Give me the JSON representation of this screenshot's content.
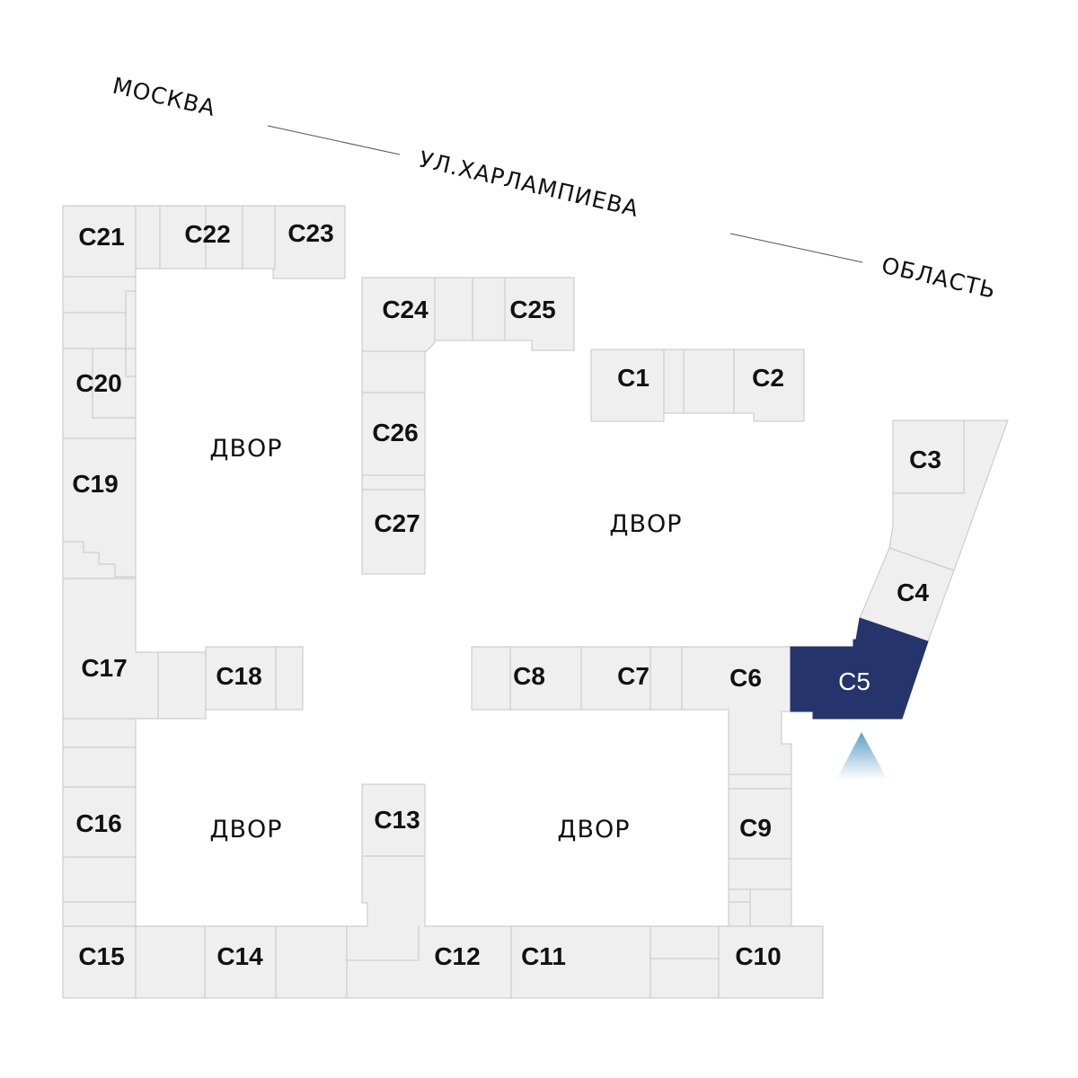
{
  "streets": {
    "left": "МОСКВА",
    "center": "УЛ.ХАРЛАМПИЕВА",
    "right": "ОБЛАСТЬ"
  },
  "yard_label": "ДВОР",
  "units": [
    "C1",
    "C2",
    "C3",
    "C4",
    "C5",
    "C6",
    "C7",
    "C8",
    "C9",
    "C10",
    "C11",
    "C12",
    "C13",
    "C14",
    "C15",
    "C16",
    "C17",
    "C18",
    "C19",
    "C20",
    "C21",
    "C22",
    "C23",
    "C24",
    "C25",
    "C26",
    "C27"
  ],
  "selected_unit": "C5",
  "colors": {
    "cell": "#efefef",
    "border": "#c6c6c6",
    "selected": "#25346b",
    "entrance_arrow": "#5a9fc4"
  },
  "icons": {
    "entrance": "entrance-arrow-icon"
  }
}
